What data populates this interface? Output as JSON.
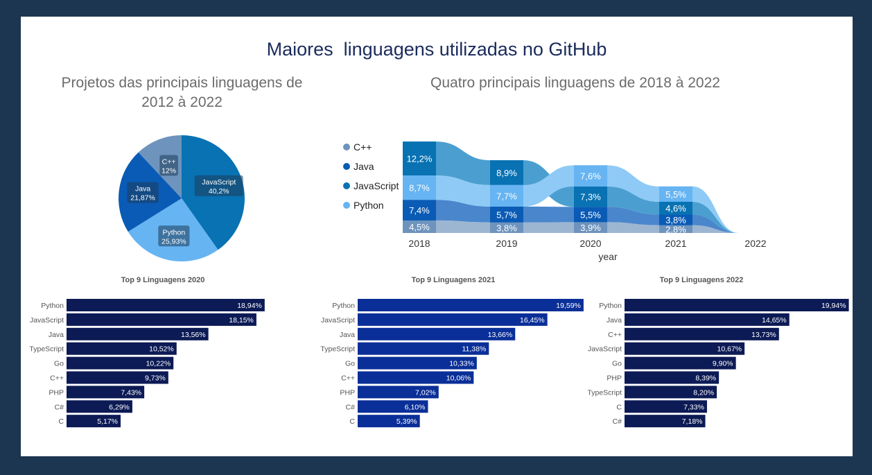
{
  "page": {
    "title": "Maiores  linguagens utilizadas no GitHub"
  },
  "colors": {
    "cpp": "#6e94bd",
    "java": "#0a5bb5",
    "javascript": "#0872b3",
    "python": "#66b4f2",
    "bar_2020": "#0c1a55",
    "bar_2021": "#0a2f98",
    "bar_2022": "#0c1a55"
  },
  "chart_data": [
    {
      "type": "pie",
      "title_line1": "Projetos das principais linguagens de",
      "title_line2": "2012 à 2022",
      "slices": [
        {
          "name": "JavaScript",
          "value": 40.2,
          "label": "40,2%",
          "color_key": "javascript"
        },
        {
          "name": "Python",
          "value": 25.93,
          "label": "25,93%",
          "color_key": "python"
        },
        {
          "name": "Java",
          "value": 21.87,
          "label": "21,87%",
          "color_key": "java"
        },
        {
          "name": "C++",
          "value": 12,
          "label": "12%",
          "color_key": "cpp"
        }
      ]
    },
    {
      "type": "area",
      "title": "Quatro principais linguagens de 2018 à 2022",
      "xlabel": "year",
      "x": [
        "2018",
        "2019",
        "2020",
        "2021",
        "2022"
      ],
      "legend": [
        "C++",
        "Java",
        "JavaScript",
        "Python"
      ],
      "series": [
        {
          "name": "C++",
          "color_key": "cpp",
          "values": [
            4.5,
            3.8,
            3.9,
            2.8,
            0
          ],
          "labels": [
            "4,5%",
            "3,8%",
            "3,9%",
            "2,8%",
            ""
          ]
        },
        {
          "name": "Java",
          "color_key": "java",
          "values": [
            7.4,
            5.7,
            5.5,
            3.8,
            0
          ],
          "labels": [
            "7,4%",
            "5,7%",
            "5,5%",
            "3,8%",
            ""
          ]
        },
        {
          "name": "JavaScript",
          "color_key": "javascript",
          "values": [
            12.2,
            8.9,
            7.3,
            4.6,
            0
          ],
          "labels": [
            "12,2%",
            "8,9%",
            "7,3%",
            "4,6%",
            ""
          ]
        },
        {
          "name": "Python",
          "color_key": "python",
          "values": [
            8.7,
            7.7,
            7.6,
            5.5,
            0
          ],
          "labels": [
            "8,7%",
            "7,7%",
            "7,6%",
            "5,5%",
            ""
          ]
        }
      ]
    },
    {
      "type": "bar",
      "title": "Top 9 Linguagens 2020",
      "color_key": "bar_2020",
      "categories": [
        "Python",
        "JavaScript",
        "Java",
        "TypeScript",
        "Go",
        "C++",
        "PHP",
        "C#",
        "C"
      ],
      "values": [
        18.94,
        18.15,
        13.56,
        10.52,
        10.22,
        9.73,
        7.43,
        6.29,
        5.17
      ],
      "labels": [
        "18,94%",
        "18,15%",
        "13,56%",
        "10,52%",
        "10,22%",
        "9,73%",
        "7,43%",
        "6,29%",
        "5,17%"
      ]
    },
    {
      "type": "bar",
      "title": "Top 9 Linguagens 2021",
      "color_key": "bar_2021",
      "categories": [
        "Python",
        "JavaScript",
        "Java",
        "TypeScript",
        "Go",
        "C++",
        "PHP",
        "C#",
        "C"
      ],
      "values": [
        19.59,
        16.45,
        13.66,
        11.38,
        10.33,
        10.06,
        7.02,
        6.1,
        5.39
      ],
      "labels": [
        "19,59%",
        "16,45%",
        "13,66%",
        "11,38%",
        "10,33%",
        "10,06%",
        "7,02%",
        "6,10%",
        "5,39%"
      ]
    },
    {
      "type": "bar",
      "title": "Top 9 Linguagens 2022",
      "color_key": "bar_2022",
      "categories": [
        "Python",
        "Java",
        "C++",
        "JavaScript",
        "Go",
        "PHP",
        "TypeScript",
        "C",
        "C#"
      ],
      "values": [
        19.94,
        14.65,
        13.73,
        10.67,
        9.9,
        8.39,
        8.2,
        7.33,
        7.18
      ],
      "labels": [
        "19,94%",
        "14,65%",
        "13,73%",
        "10,67%",
        "9,90%",
        "8,39%",
        "8,20%",
        "7,33%",
        "7,18%"
      ]
    }
  ]
}
